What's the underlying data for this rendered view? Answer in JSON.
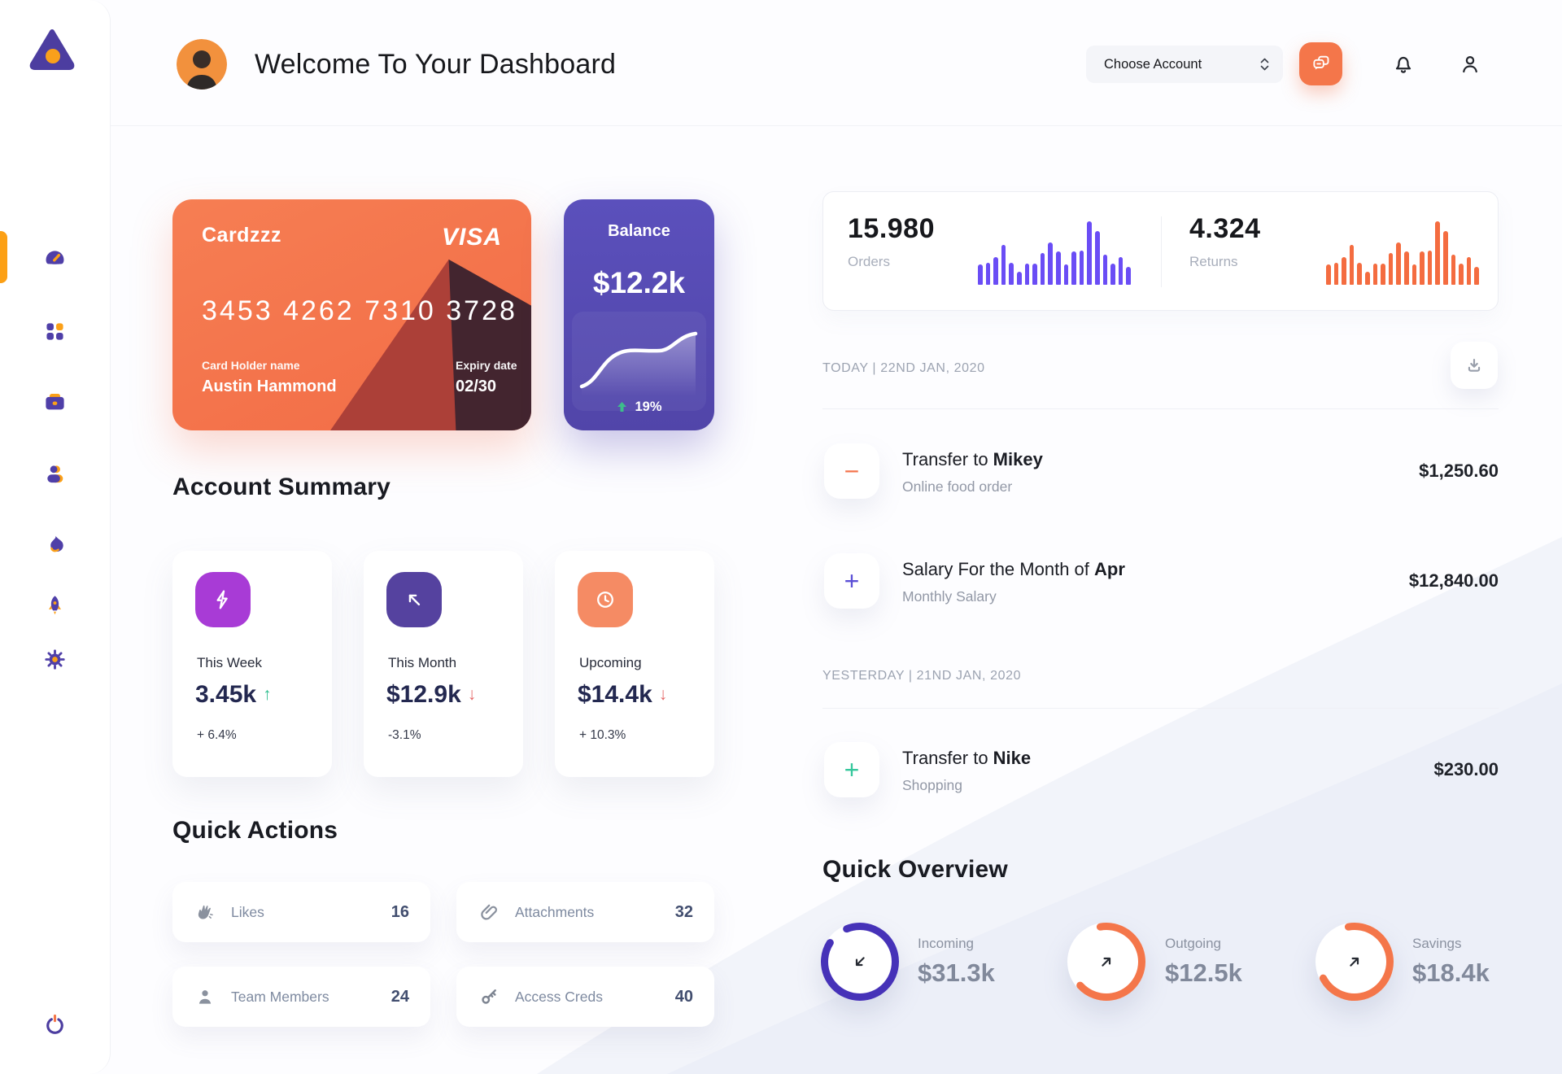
{
  "header": {
    "title": "Welcome To Your Dashboard",
    "account_select": {
      "label": "Choose Account"
    }
  },
  "sidebar": {
    "items": [
      {
        "id": "dashboard",
        "active": true
      },
      {
        "id": "apps",
        "active": false
      },
      {
        "id": "briefcase",
        "active": false
      },
      {
        "id": "contacts",
        "active": false
      },
      {
        "id": "activity",
        "active": false
      },
      {
        "id": "launch",
        "active": false
      },
      {
        "id": "settings",
        "active": false
      }
    ],
    "accent_orange": "#FCA015",
    "accent_purple": "#4F3FA8"
  },
  "credit_card": {
    "name": "Cardzzz",
    "brand": "VISA",
    "number": "3453 4262 7310 3728",
    "holder_label": "Card Holder name",
    "holder": "Austin Hammond",
    "expiry_label": "Expiry date",
    "expiry": "02/30",
    "bg": "#F4724C"
  },
  "balance_card": {
    "title": "Balance",
    "value": "$12.2k",
    "change": "19%",
    "trend": "up",
    "trend_color": "#3DBE8B",
    "bg": "#584CB5"
  },
  "stats": {
    "orders": {
      "value": "15.980",
      "label": "Orders",
      "color": "#6A4DF5",
      "bars": [
        32,
        35,
        44,
        63,
        34,
        20,
        33,
        33,
        50,
        67,
        53,
        32,
        52,
        54,
        100,
        85,
        47,
        33,
        44,
        28
      ]
    },
    "returns": {
      "value": "4.324",
      "label": "Returns",
      "color": "#F46C40",
      "bars": [
        32,
        35,
        44,
        63,
        34,
        20,
        33,
        33,
        50,
        67,
        53,
        32,
        52,
        54,
        100,
        85,
        47,
        33,
        44,
        28
      ]
    }
  },
  "account_summary": {
    "title": "Account Summary",
    "cards": [
      {
        "label": "This Week",
        "value": "3.45k",
        "arrow": "↑",
        "arrow_color": "#2FBE8F",
        "percent": "+ 6.4%",
        "tile_color": "#A83BD6",
        "icon": "lightning"
      },
      {
        "label": "This Month",
        "value": "$12.9k",
        "arrow": "↓",
        "arrow_color": "#E56767",
        "percent": "-3.1%",
        "tile_color": "#55429F",
        "icon": "arrow-up-left"
      },
      {
        "label": "Upcoming",
        "value": "$14.4k",
        "arrow": "↓",
        "arrow_color": "#E56767",
        "percent": "+ 10.3%",
        "tile_color": "#F58B64",
        "icon": "clock"
      }
    ]
  },
  "quick_actions": {
    "title": "Quick Actions",
    "items": [
      {
        "label": "Likes",
        "count": "16",
        "icon": "clap"
      },
      {
        "label": "Attachments",
        "count": "32",
        "icon": "paperclip"
      },
      {
        "label": "Team Members",
        "count": "24",
        "icon": "member"
      },
      {
        "label": "Access Creds",
        "count": "40",
        "icon": "key"
      }
    ]
  },
  "transactions": {
    "sections": [
      {
        "header": "TODAY | 22ND JAN, 2020",
        "items": [
          {
            "glyph": "−",
            "glyph_color": "#F4764E",
            "title_prefix": "Transfer to ",
            "title_bold": "Mikey",
            "subtitle": "Online food order",
            "amount": "$1,250.60"
          },
          {
            "glyph": "+",
            "glyph_color": "#5B4FD6",
            "title_prefix": "Salary For the Month of ",
            "title_bold": "Apr",
            "subtitle": "Monthly Salary",
            "amount": "$12,840.00"
          }
        ]
      },
      {
        "header": "YESTERDAY | 21ND JAN, 2020",
        "items": [
          {
            "glyph": "+",
            "glyph_color": "#35C79C",
            "title_prefix": "Transfer to ",
            "title_bold": "Nike",
            "subtitle": "Shopping",
            "amount": "$230.00"
          }
        ]
      }
    ]
  },
  "quick_overview": {
    "title": "Quick Overview",
    "items": [
      {
        "label": "Incoming",
        "value": "$31.3k",
        "percent": 90,
        "ring_color": "#4632B8",
        "direction": "down-left"
      },
      {
        "label": "Outgoing",
        "value": "$12.5k",
        "percent": 66,
        "ring_color": "#F4764A",
        "direction": "up-right"
      },
      {
        "label": "Savings",
        "value": "$18.4k",
        "percent": 70,
        "ring_color": "#F4764A",
        "direction": "up-right"
      }
    ]
  }
}
